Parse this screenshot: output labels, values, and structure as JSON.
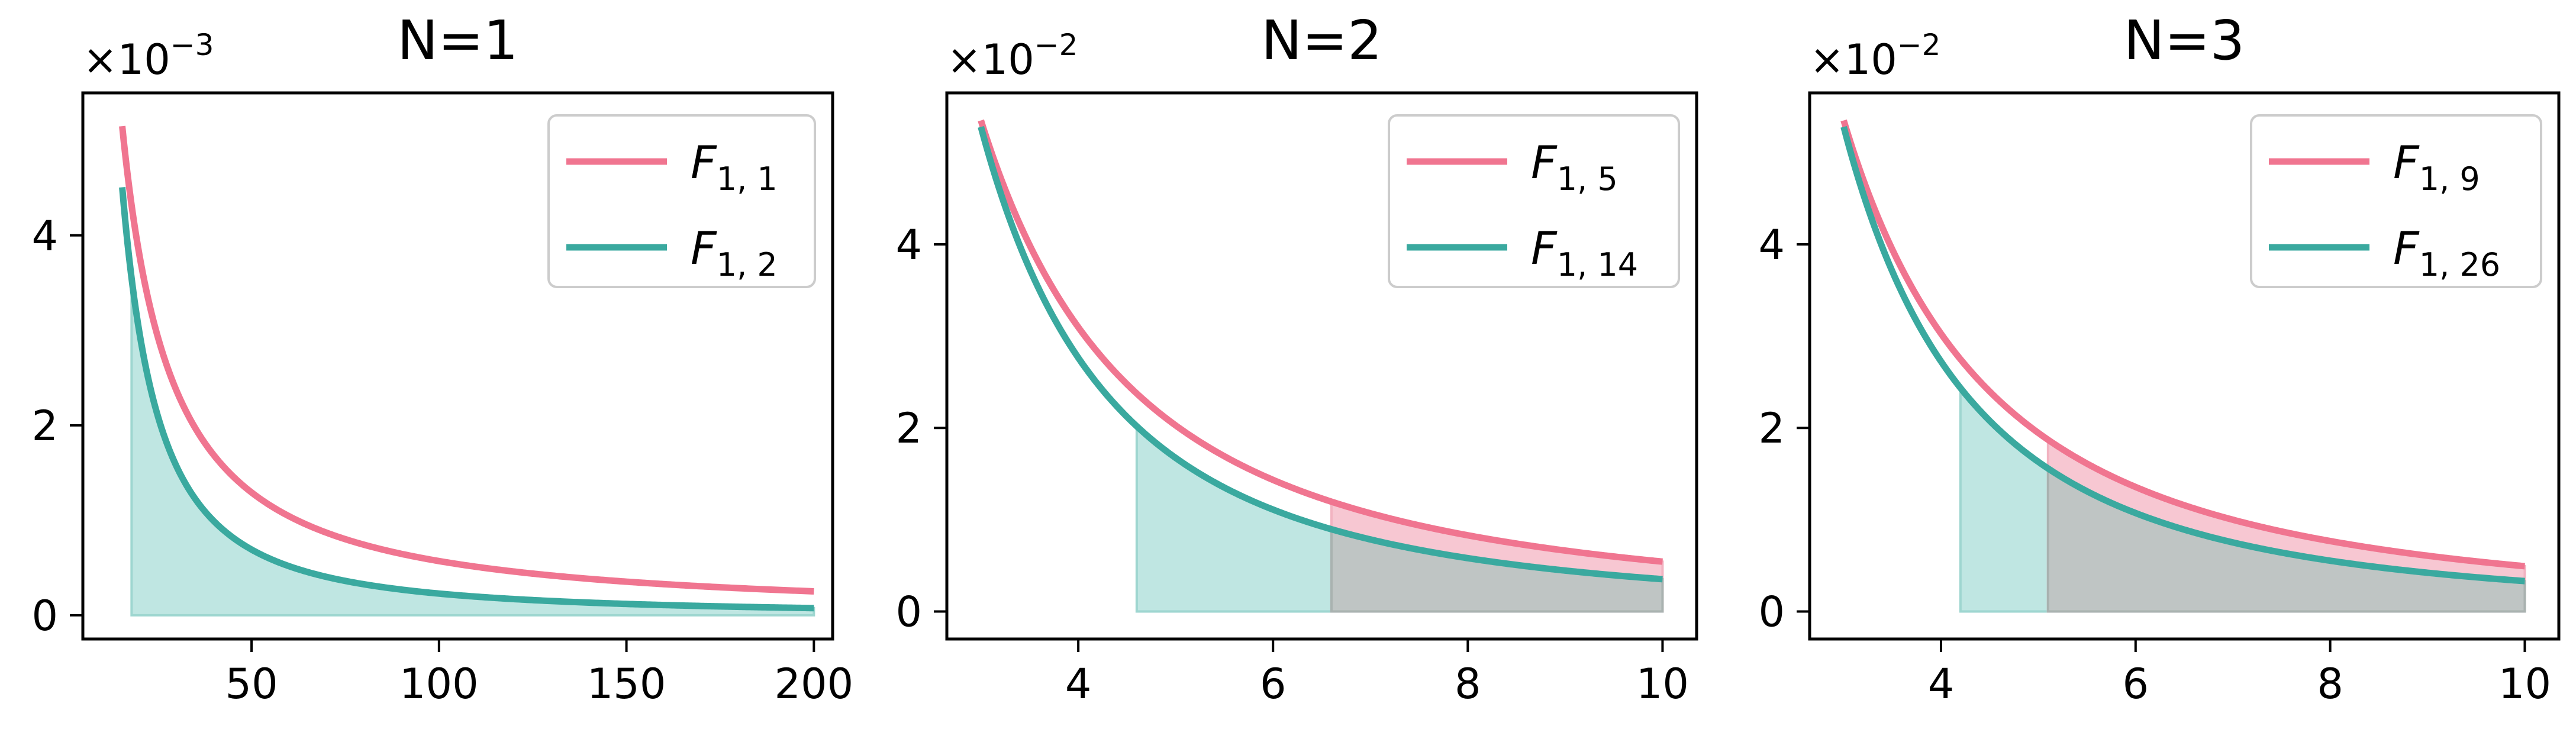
{
  "colors": {
    "pink": "#f07590",
    "teal": "#3aa99f",
    "pink_fill": "#f7c7d2",
    "teal_fill": "#bfe6e2",
    "overlap_fill": "#bfc5c4"
  },
  "chart_data": [
    {
      "type": "line",
      "title": "N=1",
      "multiplier": {
        "base": "×10",
        "exp": "−3"
      },
      "xlim": [
        5,
        205
      ],
      "ylim": [
        -0.25,
        5.5
      ],
      "xticks": [
        50,
        100,
        150,
        200
      ],
      "yticks": [
        0,
        2,
        4
      ],
      "x_tick_labels": [
        "50",
        "100",
        "150",
        "200"
      ],
      "y_tick_labels": [
        "0",
        "2",
        "4"
      ],
      "legend_position": "top-right",
      "series": [
        {
          "name": "F",
          "sub": "1, 1",
          "color_key": "pink",
          "x_start": 15.5,
          "x_end": 200,
          "scale": 1
        },
        {
          "name": "F",
          "sub": "1, 2",
          "color_key": "teal",
          "x_start": 15.5,
          "x_end": 200,
          "scale": 2
        }
      ],
      "shaded": [
        {
          "series_index": 1,
          "x_start": 18,
          "x_end": 200,
          "fill_key": "teal_fill"
        }
      ]
    },
    {
      "type": "line",
      "title": "N=2",
      "multiplier": {
        "base": "×10",
        "exp": "−2"
      },
      "xlim": [
        2.65,
        10.35
      ],
      "ylim": [
        -0.3,
        5.65
      ],
      "xticks": [
        4,
        6,
        8,
        10
      ],
      "yticks": [
        0,
        2,
        4
      ],
      "x_tick_labels": [
        "4",
        "6",
        "8",
        "10"
      ],
      "y_tick_labels": [
        "0",
        "2",
        "4"
      ],
      "legend_position": "top-right",
      "series": [
        {
          "name": "F",
          "sub": "1, 5",
          "color_key": "pink",
          "x_start": 3.0,
          "x_end": 10,
          "scale": 5
        },
        {
          "name": "F",
          "sub": "1, 14",
          "color_key": "teal",
          "x_start": 3.0,
          "x_end": 10,
          "scale": 14
        }
      ],
      "shaded": [
        {
          "series_index": 1,
          "x_start": 4.6,
          "x_end": 10,
          "fill_key": "teal_fill"
        },
        {
          "series_index": 0,
          "x_start": 6.6,
          "x_end": 10,
          "fill_key": "pink_fill"
        },
        {
          "series_index": 1,
          "x_start": 6.6,
          "x_end": 10,
          "fill_key": "overlap_fill"
        }
      ]
    },
    {
      "type": "line",
      "title": "N=3",
      "multiplier": {
        "base": "×10",
        "exp": "−2"
      },
      "xlim": [
        2.65,
        10.35
      ],
      "ylim": [
        -0.3,
        5.65
      ],
      "xticks": [
        4,
        6,
        8,
        10
      ],
      "yticks": [
        0,
        2,
        4
      ],
      "x_tick_labels": [
        "4",
        "6",
        "8",
        "10"
      ],
      "y_tick_labels": [
        "0",
        "2",
        "4"
      ],
      "legend_position": "top-right",
      "series": [
        {
          "name": "F",
          "sub": "1, 9",
          "color_key": "pink",
          "x_start": 3.0,
          "x_end": 10,
          "scale": 9
        },
        {
          "name": "F",
          "sub": "1, 26",
          "color_key": "teal",
          "x_start": 3.0,
          "x_end": 10,
          "scale": 26
        }
      ],
      "shaded": [
        {
          "series_index": 1,
          "x_start": 4.2,
          "x_end": 10,
          "fill_key": "teal_fill"
        },
        {
          "series_index": 0,
          "x_start": 5.1,
          "x_end": 10,
          "fill_key": "pink_fill"
        },
        {
          "series_index": 1,
          "x_start": 5.1,
          "x_end": 10,
          "fill_key": "overlap_fill"
        }
      ]
    }
  ]
}
